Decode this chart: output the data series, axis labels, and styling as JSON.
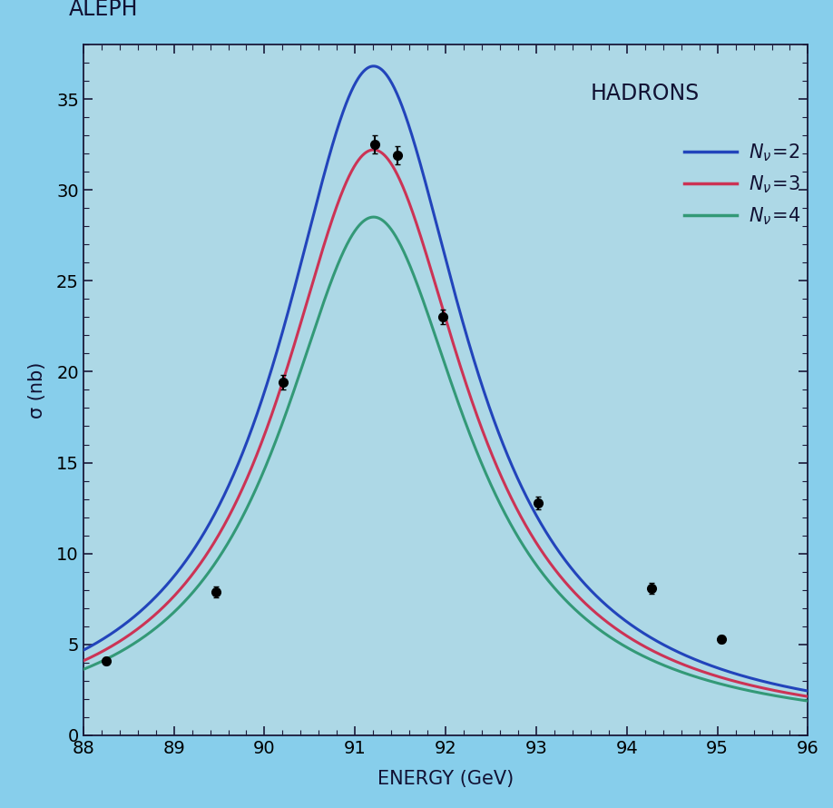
{
  "title": "ALEPH",
  "xlabel": "ENERGY (GeV)",
  "ylabel": "σ (nb)",
  "legend_title": "HADRONS",
  "background_color": "#87CEEB",
  "plot_bg_color": "#add8e6",
  "xlim": [
    88,
    96
  ],
  "ylim": [
    0,
    38
  ],
  "xticks": [
    88,
    89,
    90,
    91,
    92,
    93,
    94,
    95,
    96
  ],
  "yticks": [
    0,
    5,
    10,
    15,
    20,
    25,
    30,
    35
  ],
  "mz": 91.187,
  "gz": 2.49,
  "peak_Nv2": 36.8,
  "peak_Nv3": 32.2,
  "peak_Nv4": 28.5,
  "color_Nv2": "#2244bb",
  "color_Nv3": "#cc3355",
  "color_Nv4": "#339977",
  "data_points": [
    [
      88.25,
      4.1
    ],
    [
      89.46,
      7.9
    ],
    [
      90.21,
      19.4
    ],
    [
      91.22,
      32.5
    ],
    [
      91.47,
      31.9
    ],
    [
      91.97,
      23.0
    ],
    [
      93.02,
      12.8
    ],
    [
      94.27,
      8.1
    ],
    [
      95.04,
      5.3
    ]
  ],
  "data_errors": [
    0.2,
    0.3,
    0.4,
    0.5,
    0.5,
    0.4,
    0.35,
    0.3,
    0.2
  ],
  "line_width": 2.2,
  "title_fontsize": 17,
  "label_fontsize": 15,
  "tick_fontsize": 14,
  "legend_fontsize": 15
}
